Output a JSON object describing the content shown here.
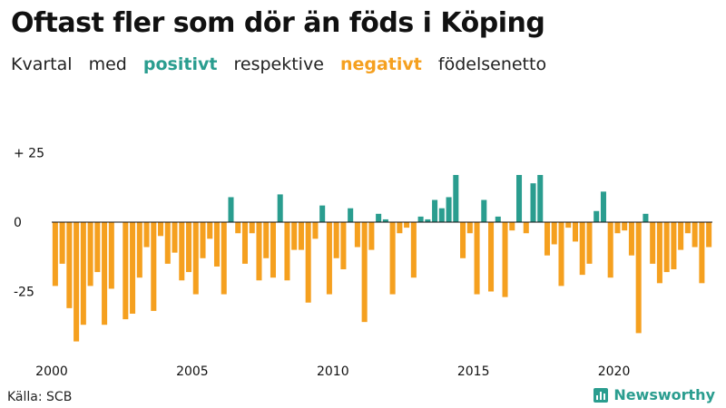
{
  "header": {
    "title": "Oftast fler som dör än föds i Köping",
    "subtitle_words": {
      "w1": "Kvartal",
      "w2": "med",
      "positive": "positivt",
      "w3": "respektive",
      "negative": "negativt",
      "w4": "födelsenetto"
    }
  },
  "colors": {
    "positive": "#2a9d8f",
    "negative": "#f5a01f",
    "text": "#111111"
  },
  "footer": {
    "source": "Källa: SCB",
    "brand": "Newsworthy",
    "brand_icon": "bar-chart-icon"
  },
  "chart_data": {
    "type": "bar",
    "title": "Oftast fler som dör än föds i Köping",
    "xlabel": "",
    "ylabel": "",
    "ylim": [
      -45,
      30
    ],
    "yticks": [
      {
        "value": 25,
        "label": "+ 25"
      },
      {
        "value": 0,
        "label": "0"
      },
      {
        "value": -25,
        "label": "-25"
      }
    ],
    "xticks": [
      {
        "index": 0,
        "label": "2000"
      },
      {
        "index": 20,
        "label": "2005"
      },
      {
        "index": 40,
        "label": "2010"
      },
      {
        "index": 60,
        "label": "2015"
      },
      {
        "index": 80,
        "label": "2020"
      }
    ],
    "start_year": 2000,
    "quarters_per_year": 4,
    "values": [
      -23,
      -15,
      -31,
      -43,
      -37,
      -23,
      -18,
      -37,
      -24,
      0,
      -35,
      -33,
      -20,
      -9,
      -32,
      -5,
      -15,
      -11,
      -21,
      -18,
      -26,
      -13,
      -6,
      -16,
      -26,
      9,
      -4,
      -15,
      -4,
      -21,
      -13,
      -20,
      10,
      -21,
      -10,
      -10,
      -29,
      -6,
      6,
      -26,
      -13,
      -17,
      5,
      -9,
      -36,
      -10,
      3,
      1,
      -26,
      -4,
      -2,
      -20,
      2,
      1,
      8,
      5,
      9,
      17,
      -13,
      -4,
      -26,
      8,
      -25,
      2,
      -27,
      -3,
      17,
      -4,
      14,
      17,
      -12,
      -8,
      -23,
      -2,
      -7,
      -19,
      -15,
      4,
      11,
      -20,
      -4,
      -3,
      -12,
      -40,
      3,
      -15,
      -22,
      -18,
      -17,
      -10,
      -4,
      -9,
      -22,
      -9
    ]
  }
}
